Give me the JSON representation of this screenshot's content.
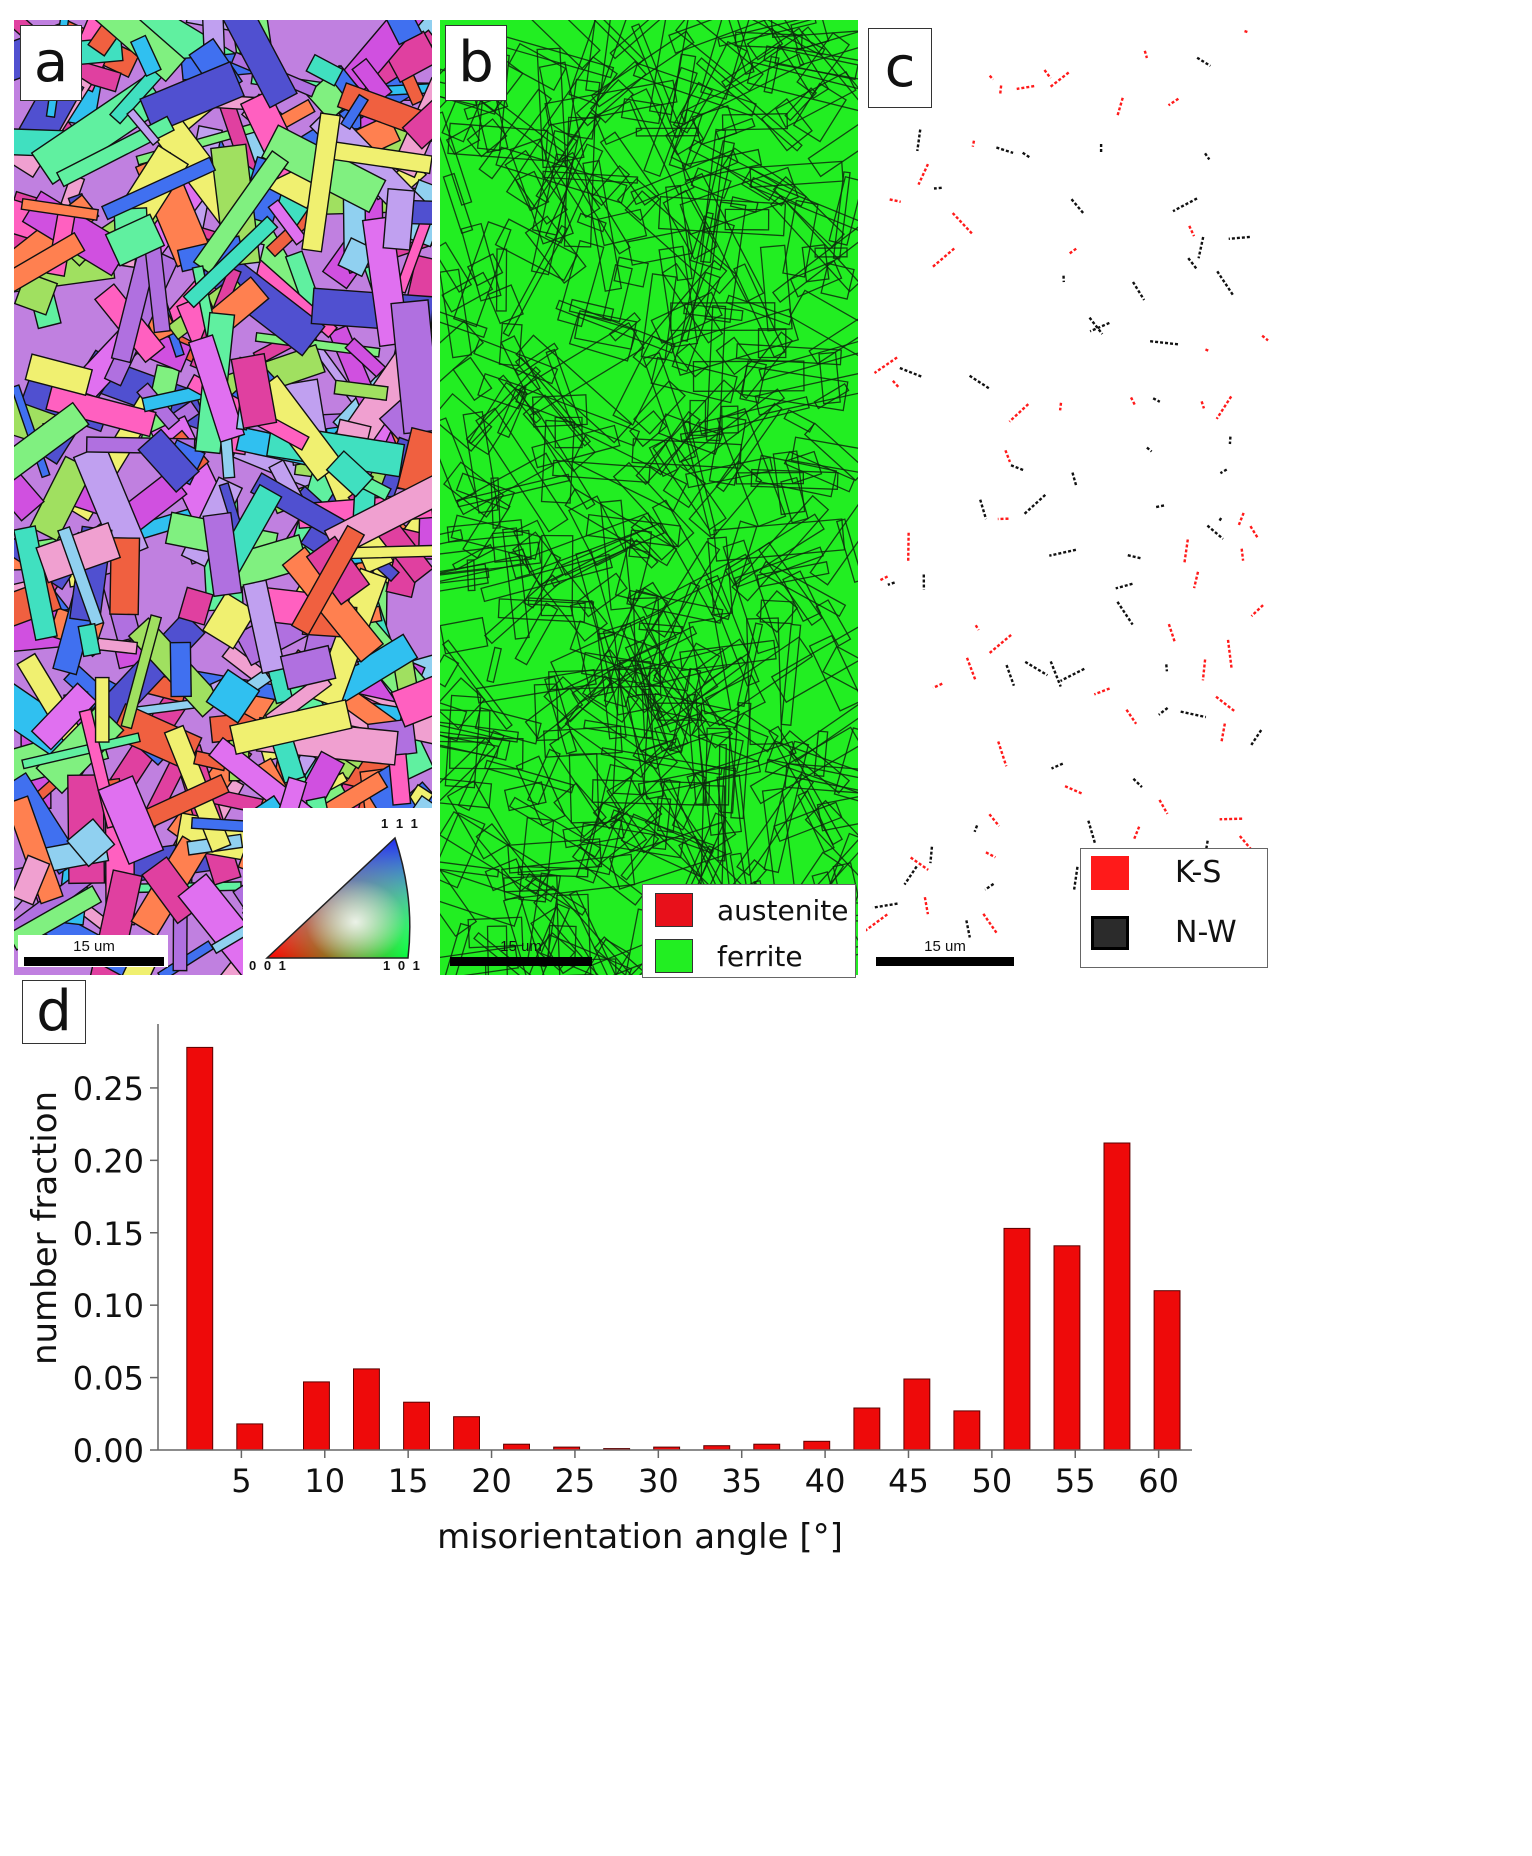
{
  "panels": {
    "a": {
      "letter": "a",
      "scalebar": "15 um",
      "ipf_labels": {
        "top": "1 1 1",
        "left": "0 0 1",
        "right": "1 0 1"
      }
    },
    "b": {
      "letter": "b",
      "scalebar": "15 um",
      "legend": [
        {
          "label": "austenite",
          "color": "#e8101a"
        },
        {
          "label": "ferrite",
          "color": "#22ee22"
        }
      ]
    },
    "c": {
      "letter": "c",
      "scalebar": "15 um",
      "legend": [
        {
          "label": "K-S",
          "color": "#ff1a1a"
        },
        {
          "label": "N-W",
          "color": "#2b2b2b"
        }
      ]
    },
    "d": {
      "letter": "d"
    }
  },
  "colors": {
    "bar": "#ee0a0a",
    "ferrite": "#22ee22",
    "boundary": "#0d2a0d"
  },
  "chart_data": {
    "type": "bar",
    "xlabel": "misorientation angle [°]",
    "ylabel": "number fraction",
    "x_ticks": [
      5,
      10,
      15,
      20,
      25,
      30,
      35,
      40,
      45,
      50,
      55,
      60
    ],
    "y_ticks": [
      "0.00",
      "0.05",
      "0.10",
      "0.15",
      "0.20",
      "0.25"
    ],
    "xlim": [
      0,
      62
    ],
    "ylim": [
      0,
      0.29
    ],
    "x": [
      2.5,
      5.5,
      9.5,
      12.5,
      15.5,
      18.5,
      21.5,
      24.5,
      27.5,
      30.5,
      33.5,
      36.5,
      39.5,
      42.5,
      45.5,
      48.5,
      51.5,
      54.5,
      57.5,
      60.5
    ],
    "values": [
      0.278,
      0.018,
      0.047,
      0.056,
      0.033,
      0.023,
      0.004,
      0.002,
      0.001,
      0.002,
      0.003,
      0.004,
      0.006,
      0.029,
      0.049,
      0.027,
      0.153,
      0.141,
      0.212,
      0.11
    ]
  }
}
